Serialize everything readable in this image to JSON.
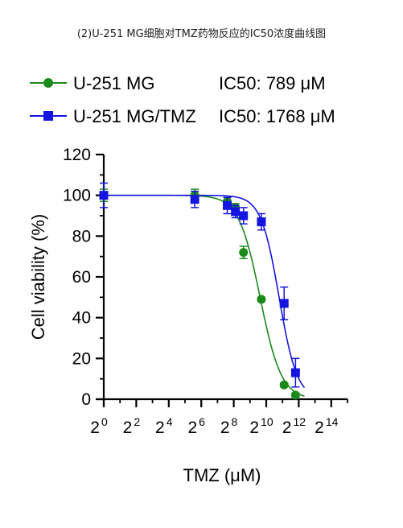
{
  "title": "(2)U-251 MG细胞对TMZ药物反应的IC50浓度曲线图",
  "chart_data": {
    "type": "scatter",
    "xlabel": "TMZ (μM)",
    "ylabel": "Cell viability (%)",
    "x_scale": "log2",
    "xlim": [
      0,
      15
    ],
    "ylim": [
      0,
      120
    ],
    "y_ticks": [
      0,
      20,
      40,
      60,
      80,
      100,
      120
    ],
    "x_ticks": [
      {
        "base": "2",
        "exp": "0",
        "value": 0
      },
      {
        "base": "2",
        "exp": "2",
        "value": 2
      },
      {
        "base": "2",
        "exp": "4",
        "value": 4
      },
      {
        "base": "2",
        "exp": "6",
        "value": 6
      },
      {
        "base": "2",
        "exp": "8",
        "value": 8
      },
      {
        "base": "2",
        "exp": "10",
        "value": 10
      },
      {
        "base": "2",
        "exp": "12",
        "value": 12
      },
      {
        "base": "2",
        "exp": "14",
        "value": 14
      }
    ],
    "legend_position": "top",
    "series": [
      {
        "name": "U-251 MG",
        "ic50_label": "IC50: 789 μM",
        "color": "#1a8a1a",
        "marker": "circle",
        "ic50_log2": 9.62,
        "hill": 2.2,
        "points": [
          {
            "x": 0,
            "y": 100,
            "err": 3
          },
          {
            "x": 5.6,
            "y": 100,
            "err": 3
          },
          {
            "x": 7.6,
            "y": 97,
            "err": 2
          },
          {
            "x": 8.1,
            "y": 94,
            "err": 2
          },
          {
            "x": 8.6,
            "y": 72,
            "err": 3
          },
          {
            "x": 9.7,
            "y": 49,
            "err": 1
          },
          {
            "x": 11.1,
            "y": 7,
            "err": 1
          },
          {
            "x": 11.8,
            "y": 2,
            "err": 1
          }
        ]
      },
      {
        "name": "U-251 MG/TMZ",
        "ic50_label": "IC50: 1768 μM",
        "color": "#1515e0",
        "marker": "square",
        "ic50_log2": 10.79,
        "hill": 2.6,
        "points": [
          {
            "x": 0,
            "y": 100,
            "err": 6
          },
          {
            "x": 5.6,
            "y": 98,
            "err": 4
          },
          {
            "x": 7.6,
            "y": 95,
            "err": 4
          },
          {
            "x": 8.1,
            "y": 92,
            "err": 3
          },
          {
            "x": 8.6,
            "y": 90,
            "err": 4
          },
          {
            "x": 9.7,
            "y": 87,
            "err": 4
          },
          {
            "x": 11.1,
            "y": 47,
            "err": 8
          },
          {
            "x": 11.8,
            "y": 13,
            "err": 7
          }
        ]
      }
    ]
  }
}
